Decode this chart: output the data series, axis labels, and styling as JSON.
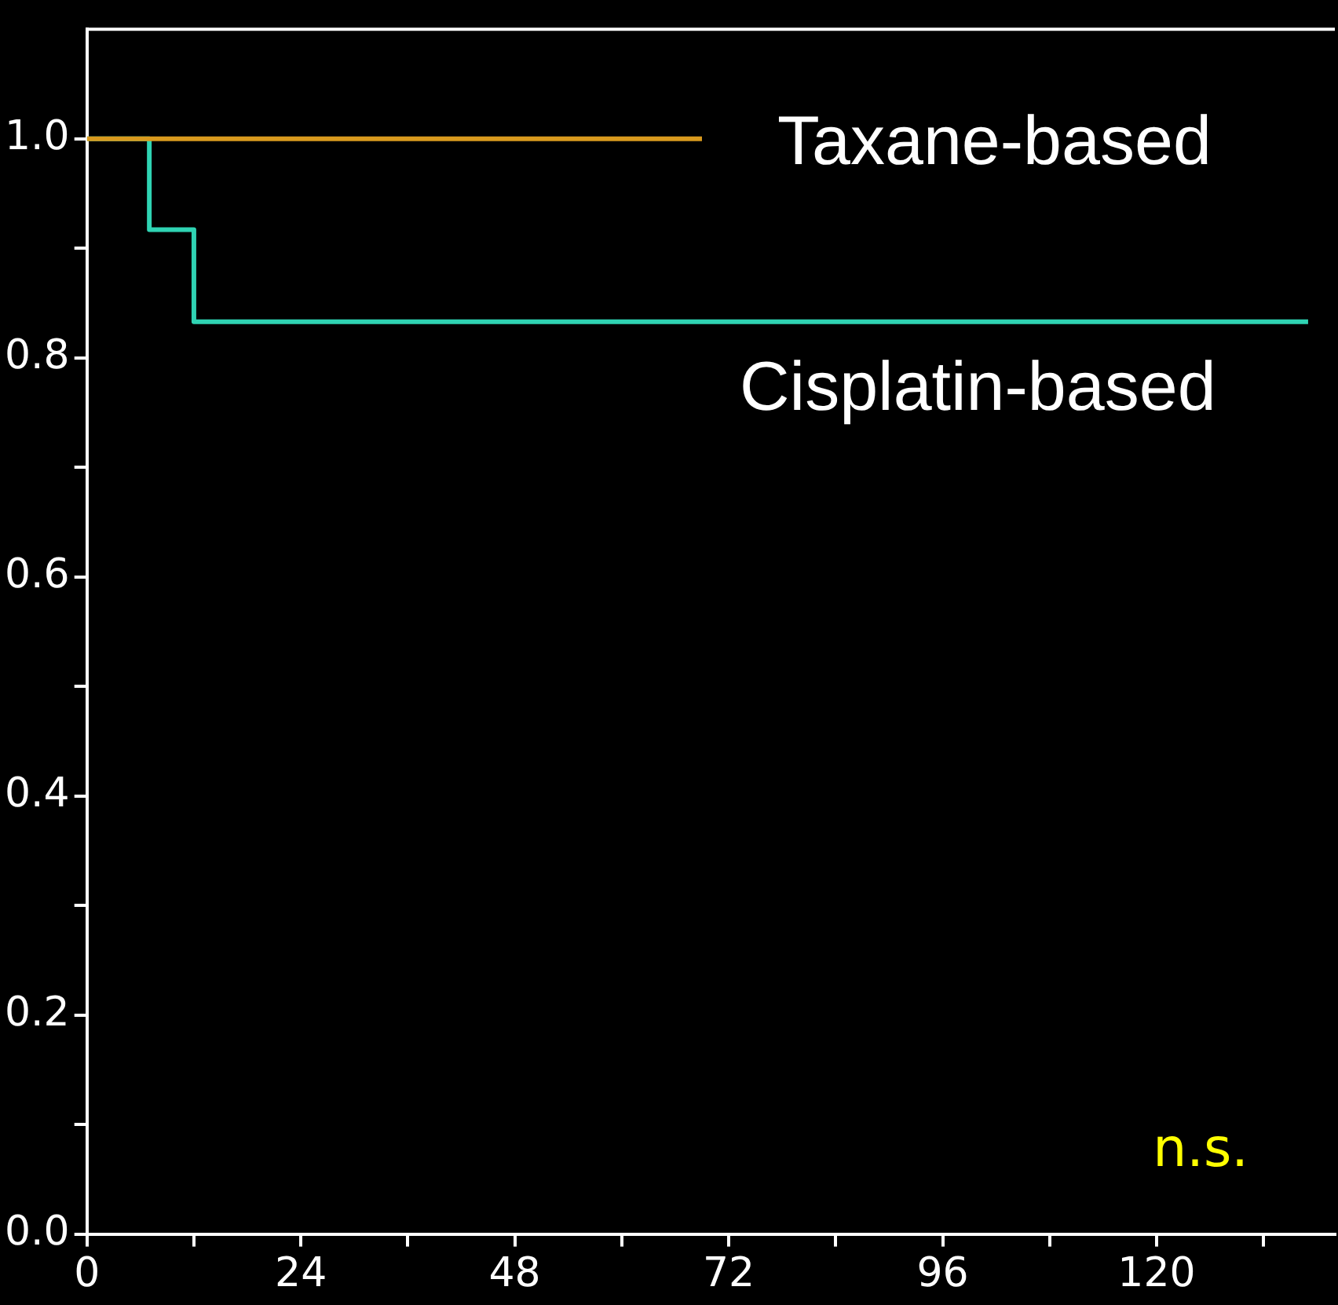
{
  "chart_data": {
    "type": "step",
    "annotations": [
      "n.s."
    ],
    "xlim": [
      0,
      140
    ],
    "ylim": [
      0,
      1.1
    ],
    "xticks": [
      0,
      {
        "value": 12,
        "label": null
      },
      24,
      {
        "value": 36,
        "label": null
      },
      48,
      {
        "value": 60,
        "label": null
      },
      72,
      {
        "value": 84,
        "label": null
      },
      96,
      {
        "value": 108,
        "label": null
      },
      120,
      {
        "value": 132,
        "label": null
      }
    ],
    "yticks": [
      {
        "value": 0,
        "label": "0.0"
      },
      {
        "value": 0.1,
        "label": null
      },
      0.2,
      {
        "value": 0.3,
        "label": null
      },
      0.4,
      {
        "value": 0.5,
        "label": null
      },
      0.6,
      {
        "value": 0.7,
        "label": null
      },
      0.8,
      {
        "value": 0.9,
        "label": null
      },
      {
        "value": 1,
        "label": "1.0"
      }
    ],
    "grid": false,
    "legend": false,
    "series": [
      {
        "name": "Taxane-based",
        "color": "#d99a1e",
        "x": [
          0,
          69
        ],
        "values": [
          1,
          1
        ]
      },
      {
        "name": "Cisplatin-based",
        "color": "#2fd3b3",
        "x": [
          0,
          7,
          12,
          137
        ],
        "values": [
          1,
          0.917,
          0.833,
          0.833
        ]
      }
    ]
  }
}
